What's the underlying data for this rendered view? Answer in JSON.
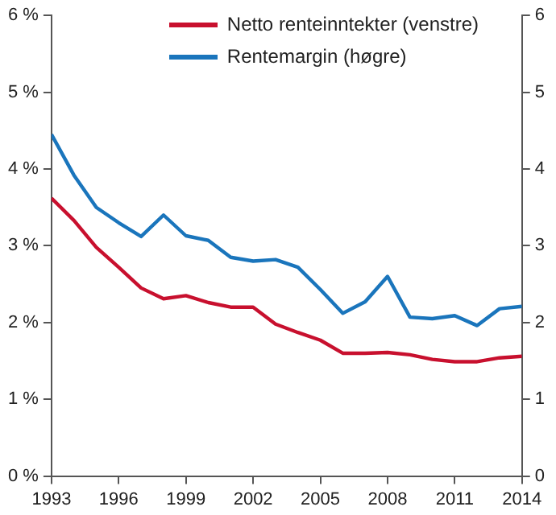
{
  "chart_data": {
    "type": "line",
    "x": [
      1993,
      1994,
      1995,
      1996,
      1997,
      1998,
      1999,
      2000,
      2001,
      2002,
      2003,
      2004,
      2005,
      2006,
      2007,
      2008,
      2009,
      2010,
      2011,
      2012,
      2013,
      2014
    ],
    "series": [
      {
        "name": "Netto renteinntekter (venstre)",
        "color": "#c8102e",
        "values": [
          3.62,
          3.33,
          2.98,
          2.72,
          2.45,
          2.31,
          2.35,
          2.26,
          2.2,
          2.2,
          1.98,
          1.87,
          1.77,
          1.6,
          1.6,
          1.61,
          1.58,
          1.52,
          1.49,
          1.49,
          1.54,
          1.56
        ]
      },
      {
        "name": "Rentemargin (høgre)",
        "color": "#1a75bc",
        "axis": "y2",
        "values": [
          4.45,
          3.92,
          3.5,
          3.3,
          3.12,
          3.4,
          3.13,
          3.07,
          2.85,
          2.8,
          2.82,
          2.72,
          2.43,
          2.12,
          2.27,
          2.6,
          2.07,
          2.05,
          2.09,
          1.96,
          2.18,
          2.21
        ]
      }
    ],
    "xlim": [
      1993,
      2014
    ],
    "xticks": [
      1993,
      1996,
      1999,
      2002,
      2005,
      2008,
      2011,
      2014
    ],
    "ylim": [
      0,
      6
    ],
    "yticks": [
      {
        "value": 0,
        "label": "0 %"
      },
      {
        "value": 1,
        "label": "1 %"
      },
      {
        "value": 2,
        "label": "2 %"
      },
      {
        "value": 3,
        "label": "3 %"
      },
      {
        "value": 4,
        "label": "4 %"
      },
      {
        "value": 5,
        "label": "5 %"
      },
      {
        "value": 6,
        "label": "6 %"
      }
    ],
    "y2lim": [
      0,
      6
    ],
    "y2ticks": [
      0,
      1,
      2,
      3,
      4,
      5,
      6
    ],
    "grid": false,
    "legend": "top right",
    "marker": "none",
    "line_style": "solid"
  }
}
